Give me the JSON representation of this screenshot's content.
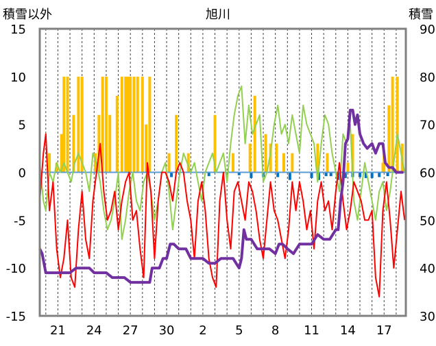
{
  "chart_data": {
    "type": "line",
    "title": "旭川",
    "ylabel_left": "積雪以外",
    "ylabel_right": "積雪",
    "ylim_left": [
      -15,
      15
    ],
    "ylim_right": [
      30,
      90
    ],
    "yticks_left": [
      "15",
      "10",
      "5",
      "0",
      "-5",
      "-10",
      "-15"
    ],
    "yticks_right": [
      "90",
      "80",
      "70",
      "60",
      "50",
      "40",
      "30"
    ],
    "x_range": [
      19.5,
      49.8
    ],
    "xtick_labels": [
      "21",
      "24",
      "27",
      "30",
      "2",
      "5",
      "8",
      "11",
      "14",
      "17"
    ],
    "xtick_pos": [
      21,
      24,
      27,
      30,
      33,
      36,
      39,
      42,
      45,
      48
    ],
    "grid": "vertical dashed, daily",
    "colors": {
      "temperature": "#ff0000",
      "humidity": "#92d050",
      "snowfall": "#ffc000",
      "snow_reduction": "#0070c0",
      "snow_depth": "#7030a0",
      "zero_line": "#5b9bd5",
      "frame": "#808080"
    },
    "series": [
      {
        "key": "temperature",
        "axis": "left",
        "x": [
          19.5,
          19.8,
          20.0,
          20.3,
          20.6,
          20.9,
          21.2,
          21.5,
          21.8,
          22.1,
          22.4,
          22.7,
          23.0,
          23.3,
          23.6,
          23.9,
          24.2,
          24.5,
          24.8,
          25.1,
          25.4,
          25.7,
          26.0,
          26.3,
          26.6,
          26.9,
          27.2,
          27.5,
          27.8,
          28.1,
          28.4,
          28.7,
          29.0,
          29.3,
          29.6,
          29.9,
          30.2,
          30.5,
          30.8,
          31.1,
          31.4,
          31.7,
          32.0,
          32.3,
          32.6,
          32.9,
          33.2,
          33.5,
          33.8,
          34.1,
          34.4,
          34.7,
          35.0,
          35.3,
          35.6,
          35.9,
          36.2,
          36.5,
          36.8,
          37.1,
          37.4,
          37.7,
          38.0,
          38.3,
          38.6,
          38.9,
          39.2,
          39.5,
          39.8,
          40.1,
          40.4,
          40.7,
          41.0,
          41.3,
          41.6,
          41.9,
          42.2,
          42.5,
          42.8,
          43.1,
          43.4,
          43.7,
          44.0,
          44.3,
          44.6,
          44.9,
          45.2,
          45.5,
          45.8,
          46.1,
          46.4,
          46.7,
          47.0,
          47.3,
          47.6,
          47.9,
          48.2,
          48.5,
          48.8,
          49.1,
          49.4,
          49.7
        ],
        "values": [
          -3,
          2,
          4,
          -4,
          -1,
          -8,
          -11,
          -9,
          -5,
          -11,
          -12,
          -6,
          -2,
          -7,
          -9,
          -3,
          0,
          3,
          -2,
          -5,
          -4,
          -2,
          -6,
          -3,
          -1,
          0,
          -5,
          -4,
          -8,
          -11,
          1,
          -2,
          -9,
          -3,
          0,
          0,
          -1,
          -3,
          0,
          1,
          0,
          -3,
          -5,
          -9,
          -3,
          -1,
          -4,
          -9,
          -11,
          -12,
          -3,
          0,
          -5,
          -8,
          -2,
          -1,
          -3,
          -5,
          -1,
          -2,
          -4,
          -7,
          -9,
          -5,
          -1,
          -4,
          -5,
          -7,
          -9,
          -6,
          -1,
          -4,
          -1,
          -3,
          -6,
          -4,
          -8,
          -3,
          -1,
          -4,
          -3,
          -6,
          -2,
          1,
          -3,
          -6,
          -4,
          -1,
          -2,
          -3,
          -5,
          -5,
          -4,
          -11,
          -13,
          -4,
          -1,
          -5,
          -10,
          -6,
          -2,
          -5
        ]
      },
      {
        "key": "humidity",
        "axis": "left",
        "x": [
          19.5,
          19.8,
          20.0,
          20.3,
          20.6,
          20.9,
          21.2,
          21.5,
          21.8,
          22.1,
          22.4,
          22.7,
          23.0,
          23.3,
          23.6,
          23.9,
          24.2,
          24.5,
          24.8,
          25.1,
          25.4,
          25.7,
          26.0,
          26.3,
          26.6,
          26.9,
          27.2,
          27.5,
          27.8,
          28.1,
          28.4,
          28.7,
          29.0,
          29.3,
          29.6,
          29.9,
          30.2,
          30.5,
          30.8,
          31.1,
          31.4,
          31.7,
          32.0,
          32.3,
          32.6,
          32.9,
          33.2,
          33.5,
          33.8,
          34.1,
          34.4,
          34.7,
          35.0,
          35.3,
          35.6,
          35.9,
          36.2,
          36.5,
          36.8,
          37.1,
          37.4,
          37.7,
          38.0,
          38.3,
          38.6,
          38.9,
          39.2,
          39.5,
          39.8,
          40.1,
          40.4,
          40.7,
          41.0,
          41.3,
          41.6,
          41.9,
          42.2,
          42.5,
          42.8,
          43.1,
          43.4,
          43.7,
          44.0,
          44.3,
          44.6,
          44.9,
          45.2,
          45.5,
          45.8,
          46.1,
          46.4,
          46.7,
          47.0,
          47.3,
          47.6,
          47.9,
          48.2,
          48.5,
          48.8,
          49.1,
          49.4,
          49.7
        ],
        "values": [
          1,
          -3,
          -4,
          0,
          -1,
          1,
          0,
          1,
          0,
          -1,
          1,
          2,
          1,
          0,
          -2,
          2,
          1,
          -1,
          -4,
          -6,
          -5,
          -3,
          0,
          -7,
          -5,
          -2,
          0,
          -3,
          -4,
          -1,
          0,
          -2,
          -5,
          -3,
          0,
          1,
          -2,
          -6,
          -3,
          0,
          2,
          1,
          0,
          1,
          -1,
          -3,
          0,
          1,
          2,
          0,
          1,
          2,
          -1,
          3,
          6,
          8,
          9,
          3,
          7,
          4,
          5,
          6,
          -1,
          0,
          2,
          5,
          7,
          4,
          5,
          3,
          6,
          4,
          2,
          7,
          5,
          4,
          3,
          -1,
          3,
          6,
          5,
          2,
          0,
          -2,
          4,
          3,
          5,
          -3,
          -5,
          -2,
          1,
          -1,
          -3,
          -5,
          -2,
          -1,
          -4,
          -2,
          1,
          4,
          2,
          0
        ]
      },
      {
        "key": "snow_depth",
        "axis": "right",
        "x": [
          19.5,
          19.7,
          20.0,
          20.5,
          21.0,
          22.0,
          22.5,
          23.0,
          23.6,
          24.0,
          25.0,
          25.5,
          26.0,
          26.5,
          27.0,
          27.5,
          28.0,
          28.6,
          28.8,
          29.0,
          29.4,
          29.7,
          30.0,
          30.3,
          30.6,
          31.0,
          31.6,
          32.0,
          32.5,
          33.0,
          33.5,
          34.0,
          34.5,
          35.0,
          35.2,
          35.5,
          36.0,
          36.2,
          36.4,
          36.6,
          37.0,
          37.5,
          38.0,
          38.5,
          39.0,
          39.3,
          39.6,
          40.0,
          40.5,
          41.0,
          41.5,
          42.0,
          42.5,
          43.0,
          43.5,
          44.0,
          44.2,
          44.4,
          44.6,
          44.8,
          45.0,
          45.2,
          45.4,
          45.6,
          45.8,
          46.0,
          46.3,
          46.6,
          47.0,
          47.3,
          47.6,
          47.9,
          48.1,
          48.4,
          48.7,
          49.0,
          49.6
        ],
        "values": [
          44,
          43,
          39,
          39,
          39,
          39,
          40,
          40,
          40,
          39,
          39,
          38,
          38,
          38,
          37,
          37,
          37,
          37,
          40,
          40,
          40,
          42,
          42,
          45,
          45,
          44,
          44,
          42,
          42,
          42,
          41,
          41,
          42,
          42,
          42,
          42,
          40,
          42,
          48,
          46,
          46,
          44,
          44,
          44,
          43,
          45,
          45,
          44,
          43,
          45,
          45,
          45,
          47,
          46,
          46,
          48,
          48,
          54,
          58,
          66,
          67,
          73,
          73,
          70,
          72,
          68,
          66,
          65,
          66,
          64,
          66,
          66,
          62,
          61,
          61,
          60,
          60
        ]
      }
    ],
    "bars": [
      {
        "key": "snowfall",
        "axis": "left",
        "x": [
          20.3,
          20.9,
          21.3,
          21.5,
          21.8,
          22.3,
          22.7,
          23.0,
          24.1,
          24.4,
          24.7,
          25.0,
          25.3,
          25.9,
          26.3,
          26.6,
          26.8,
          27.0,
          27.3,
          27.6,
          28.0,
          28.3,
          28.6,
          30.2,
          30.8,
          31.8,
          34.0,
          35.5,
          36.9,
          37.3,
          38.2,
          38.6,
          39.1,
          39.7,
          40.4,
          42.5,
          43.3,
          45.0,
          45.4,
          47.9,
          48.0,
          48.4,
          48.7,
          49.1,
          49.5
        ],
        "values": [
          2,
          1,
          4,
          10,
          10,
          6,
          10,
          10,
          2,
          6,
          10,
          10,
          6,
          8,
          10,
          10,
          10,
          10,
          10,
          10,
          10,
          5,
          10,
          2,
          6,
          2,
          6,
          2,
          3,
          8,
          4,
          3,
          3,
          2,
          2,
          3,
          2,
          1,
          4,
          1,
          2,
          7,
          10,
          10,
          3
        ]
      },
      {
        "key": "snow_reduction",
        "axis": "left",
        "x": [
          30.4,
          33.5,
          36.0,
          37.0,
          38.0,
          39.2,
          40.2,
          42.0,
          42.6,
          43.2,
          43.6,
          44.2,
          44.8,
          45.4,
          46.0,
          46.5,
          47.0,
          47.6,
          48.3
        ],
        "values": [
          -0.5,
          -0.4,
          -0.3,
          -0.6,
          -0.5,
          -0.5,
          -0.8,
          -0.6,
          -0.8,
          -0.4,
          -0.4,
          -0.8,
          -0.6,
          -0.5,
          -0.5,
          -0.6,
          -0.6,
          -0.5,
          -0.4
        ]
      }
    ]
  }
}
